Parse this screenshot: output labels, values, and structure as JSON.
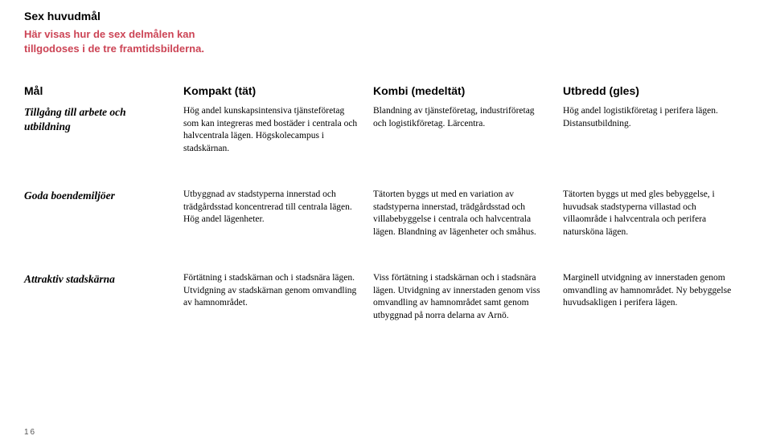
{
  "page_number": "16",
  "heading": {
    "title": "Sex huvudmål",
    "subtitle": "Här visas hur de sex delmålen kan tillgodoses i de tre framtidsbilderna."
  },
  "colors": {
    "subtitle": "#cc4455",
    "text": "#000000",
    "background": "#ffffff"
  },
  "table": {
    "columns": [
      "Mål",
      "Kompakt (tät)",
      "Kombi (medeltät)",
      "Utbredd (gles)"
    ],
    "rows": [
      {
        "label": "Tillgång till arbete och utbildning",
        "cells": [
          "Hög andel kunskapsintensiva tjänsteföretag som kan integreras med bostäder i centrala och halvcentrala lägen. Högskolecampus i stadskärnan.",
          "Blandning av tjänsteföretag, industriföretag och logistikföretag. Lärcentra.",
          "Hög andel logistikföretag i perifera lägen. Distansutbildning."
        ]
      },
      {
        "label": "Goda boendemiljöer",
        "cells": [
          "Utbyggnad av stadstyperna innerstad och trädgårdsstad koncentrerad till centrala lägen. Hög andel lägenheter.",
          "Tätorten byggs ut med en variation av stadstyperna innerstad, trädgårdsstad och villabebyggelse i centrala och halvcentrala lägen. Blandning av lägenheter och småhus.",
          "Tätorten byggs ut med gles bebyggelse, i huvudsak stadstyperna villastad och villaområde i halvcentrala och perifera natursköna lägen."
        ]
      },
      {
        "label": "Attraktiv stadskärna",
        "cells": [
          "Förtätning i stadskärnan och i stadsnära lägen. Utvidgning av stadskärnan genom omvandling av hamnområdet.",
          "Viss förtätning i stadskärnan och i stadsnära lägen. Utvidgning av innerstaden genom viss omvandling av hamnområdet samt genom utbyggnad på norra delarna av Arnö.",
          "Marginell utvidgning av innerstaden genom omvandling av hamnområdet. Ny bebyggelse huvudsakligen i perifera lägen."
        ]
      }
    ]
  }
}
